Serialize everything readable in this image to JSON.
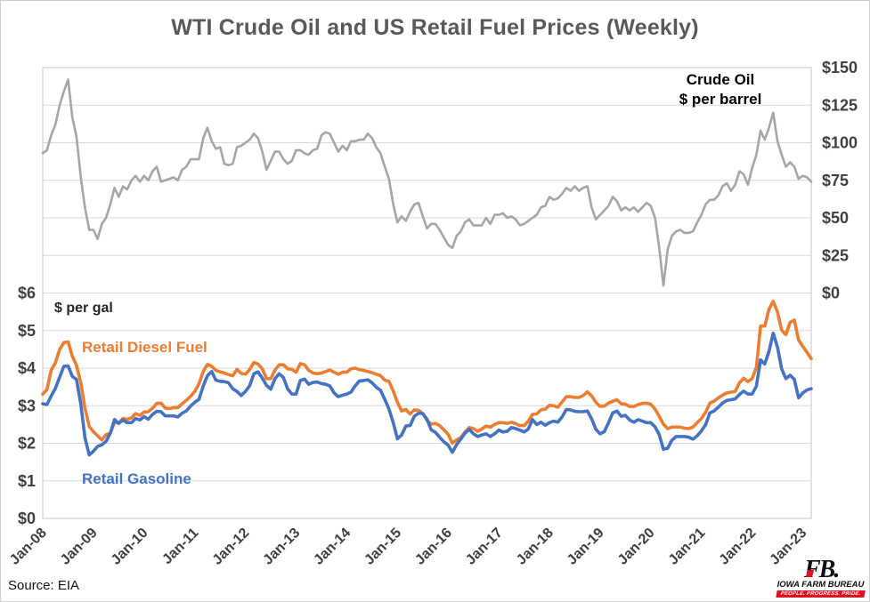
{
  "title": "WTI Crude Oil and US Retail Fuel Prices (Weekly)",
  "source": "Source: EIA",
  "annotations": {
    "crude_line1": "Crude Oil",
    "crude_line2": "$ per barrel",
    "per_gal": "$ per gal",
    "diesel": "Retail Diesel Fuel",
    "gasoline": "Retail Gasoline"
  },
  "logo": {
    "monogram": "FB.",
    "name": "IOWA FARM BUREAU",
    "tagline": "PEOPLE. PROGRESS. PRIDE."
  },
  "colors": {
    "crude": "#A6A6A6",
    "diesel": "#ED7D31",
    "gasoline": "#4472C4",
    "title": "#595959",
    "axis_text": "#404040",
    "grid": "#D9D9D9",
    "plot_border": "#D0D0D0",
    "logo_red": "#E01020",
    "logo_black": "#111111"
  },
  "chart_data": {
    "type": "line",
    "title": "WTI Crude Oil and US Retail Fuel Prices (Weekly)",
    "frequency": "weekly (approximated monthly)",
    "x_start_year": 2008,
    "x_step_months": 1,
    "x_end": "Mar-2023",
    "x_tick_labels": [
      "Jan-08",
      "Jan-09",
      "Jan-10",
      "Jan-11",
      "Jan-12",
      "Jan-13",
      "Jan-14",
      "Jan-15",
      "Jan-16",
      "Jan-17",
      "Jan-18",
      "Jan-19",
      "Jan-20",
      "Jan-21",
      "Jan-22",
      "Jan-23"
    ],
    "grid": "horizontal only",
    "right_axis": {
      "label": "Crude Oil $ per barrel",
      "min": 0,
      "max": 150,
      "tick_values": [
        150,
        125,
        100,
        75,
        50,
        25,
        0
      ],
      "tick_labels": [
        "$150",
        "$125",
        "$100",
        "$75",
        "$50",
        "$25",
        "$0"
      ],
      "note": "applies to upper half of plot"
    },
    "left_axis": {
      "label": "$ per gal",
      "min": 0,
      "max": 6,
      "tick_values": [
        6,
        5,
        4,
        3,
        2,
        1,
        0
      ],
      "tick_labels": [
        "$6",
        "$5",
        "$4",
        "$3",
        "$2",
        "$1",
        "$0"
      ],
      "note": "applies to lower half of plot"
    },
    "series": [
      {
        "name": "WTI Crude Oil",
        "unit": "$ per barrel",
        "axis": "right",
        "color": "#A6A6A6",
        "values": [
          93,
          95,
          105,
          112,
          125,
          134,
          142,
          117,
          104,
          77,
          57,
          42,
          42,
          36,
          46,
          50,
          59,
          70,
          64,
          71,
          69,
          75,
          78,
          74,
          78,
          75,
          81,
          84,
          74,
          75,
          76,
          77,
          75,
          82,
          84,
          89,
          89,
          89,
          103,
          110,
          101,
          96,
          97,
          86,
          85,
          86,
          97,
          98,
          100,
          102,
          106,
          103,
          94,
          82,
          88,
          94,
          94,
          89,
          86,
          88,
          95,
          95,
          93,
          92,
          95,
          96,
          105,
          107,
          106,
          100,
          94,
          98,
          95,
          101,
          101,
          102,
          102,
          106,
          103,
          97,
          93,
          84,
          76,
          59,
          47,
          51,
          48,
          54,
          59,
          60,
          51,
          43,
          46,
          46,
          42,
          37,
          32,
          30,
          38,
          41,
          47,
          49,
          45,
          45,
          45,
          50,
          46,
          52,
          52,
          53,
          50,
          51,
          49,
          45,
          46,
          48,
          50,
          52,
          57,
          58,
          64,
          62,
          63,
          66,
          70,
          68,
          71,
          68,
          70,
          71,
          57,
          49,
          52,
          55,
          58,
          64,
          61,
          55,
          57,
          55,
          57,
          54,
          57,
          60,
          58,
          50,
          30,
          5,
          29,
          38,
          41,
          42,
          40,
          40,
          41,
          47,
          52,
          59,
          62,
          62,
          65,
          71,
          73,
          68,
          72,
          81,
          79,
          72,
          83,
          92,
          108,
          102,
          110,
          120,
          101,
          92,
          84,
          87,
          84,
          76,
          78,
          77,
          74
        ]
      },
      {
        "name": "Retail Diesel Fuel",
        "unit": "$ per gal",
        "axis": "left",
        "color": "#ED7D31",
        "values": [
          3.31,
          3.43,
          3.95,
          4.14,
          4.5,
          4.68,
          4.7,
          4.32,
          4.07,
          3.62,
          2.93,
          2.45,
          2.31,
          2.2,
          2.09,
          2.23,
          2.27,
          2.56,
          2.54,
          2.66,
          2.64,
          2.68,
          2.79,
          2.74,
          2.83,
          2.84,
          2.93,
          3.06,
          3.07,
          2.94,
          2.92,
          2.95,
          2.95,
          3.05,
          3.14,
          3.25,
          3.38,
          3.58,
          3.91,
          4.1,
          4.05,
          3.94,
          3.9,
          3.87,
          3.83,
          3.8,
          3.97,
          3.86,
          3.84,
          3.96,
          4.15,
          4.11,
          3.98,
          3.72,
          3.72,
          3.95,
          4.09,
          4.09,
          3.98,
          3.97,
          3.89,
          4.12,
          4.09,
          3.94,
          3.87,
          3.85,
          3.87,
          3.91,
          3.95,
          3.89,
          3.84,
          3.89,
          3.89,
          3.98,
          4.0,
          3.96,
          3.94,
          3.91,
          3.88,
          3.84,
          3.8,
          3.68,
          3.65,
          3.39,
          3.09,
          2.86,
          2.9,
          2.78,
          2.89,
          2.88,
          2.79,
          2.61,
          2.51,
          2.53,
          2.47,
          2.36,
          2.24,
          2.0,
          2.09,
          2.15,
          2.3,
          2.42,
          2.39,
          2.32,
          2.38,
          2.46,
          2.43,
          2.5,
          2.55,
          2.55,
          2.53,
          2.56,
          2.52,
          2.47,
          2.47,
          2.59,
          2.77,
          2.78,
          2.89,
          2.91,
          3.01,
          3.0,
          2.96,
          3.1,
          3.24,
          3.24,
          3.22,
          3.22,
          3.27,
          3.37,
          3.26,
          3.09,
          2.98,
          2.99,
          3.07,
          3.12,
          3.16,
          3.05,
          3.04,
          2.98,
          2.98,
          3.03,
          3.06,
          3.07,
          3.04,
          2.91,
          2.72,
          2.51,
          2.39,
          2.43,
          2.43,
          2.43,
          2.4,
          2.39,
          2.43,
          2.55,
          2.66,
          2.83,
          3.07,
          3.12,
          3.21,
          3.28,
          3.34,
          3.36,
          3.38,
          3.61,
          3.73,
          3.64,
          3.72,
          4.02,
          5.12,
          5.12,
          5.57,
          5.78,
          5.49,
          5.01,
          4.89,
          5.22,
          5.28,
          4.75,
          4.58,
          4.42,
          4.25
        ]
      },
      {
        "name": "Retail Gasoline",
        "unit": "$ per gal",
        "axis": "left",
        "color": "#4472C4",
        "values": [
          3.05,
          3.03,
          3.26,
          3.46,
          3.76,
          4.05,
          4.06,
          3.78,
          3.7,
          3.05,
          2.15,
          1.69,
          1.79,
          1.92,
          1.96,
          2.05,
          2.27,
          2.63,
          2.53,
          2.62,
          2.55,
          2.55,
          2.66,
          2.62,
          2.71,
          2.64,
          2.77,
          2.85,
          2.84,
          2.73,
          2.73,
          2.73,
          2.7,
          2.8,
          2.86,
          2.99,
          3.09,
          3.17,
          3.52,
          3.8,
          3.91,
          3.68,
          3.65,
          3.64,
          3.61,
          3.45,
          3.38,
          3.27,
          3.38,
          3.53,
          3.85,
          3.9,
          3.73,
          3.54,
          3.44,
          3.72,
          3.85,
          3.75,
          3.45,
          3.31,
          3.31,
          3.67,
          3.71,
          3.57,
          3.62,
          3.63,
          3.59,
          3.57,
          3.53,
          3.34,
          3.24,
          3.28,
          3.31,
          3.36,
          3.53,
          3.66,
          3.67,
          3.69,
          3.61,
          3.49,
          3.41,
          3.17,
          2.91,
          2.55,
          2.12,
          2.22,
          2.46,
          2.47,
          2.72,
          2.8,
          2.79,
          2.64,
          2.36,
          2.29,
          2.16,
          2.04,
          1.95,
          1.76,
          1.96,
          2.11,
          2.27,
          2.37,
          2.25,
          2.18,
          2.22,
          2.25,
          2.18,
          2.25,
          2.35,
          2.3,
          2.32,
          2.42,
          2.39,
          2.35,
          2.3,
          2.38,
          2.63,
          2.5,
          2.56,
          2.48,
          2.55,
          2.59,
          2.56,
          2.7,
          2.9,
          2.89,
          2.85,
          2.84,
          2.84,
          2.86,
          2.65,
          2.37,
          2.25,
          2.31,
          2.55,
          2.81,
          2.86,
          2.72,
          2.74,
          2.62,
          2.56,
          2.63,
          2.59,
          2.55,
          2.55,
          2.44,
          2.23,
          1.84,
          1.87,
          2.08,
          2.18,
          2.18,
          2.18,
          2.16,
          2.11,
          2.2,
          2.33,
          2.5,
          2.81,
          2.86,
          2.96,
          3.07,
          3.14,
          3.16,
          3.18,
          3.3,
          3.39,
          3.31,
          3.31,
          3.52,
          4.22,
          4.11,
          4.45,
          4.93,
          4.56,
          3.98,
          3.72,
          3.81,
          3.7,
          3.21,
          3.34,
          3.42,
          3.45
        ]
      }
    ]
  }
}
